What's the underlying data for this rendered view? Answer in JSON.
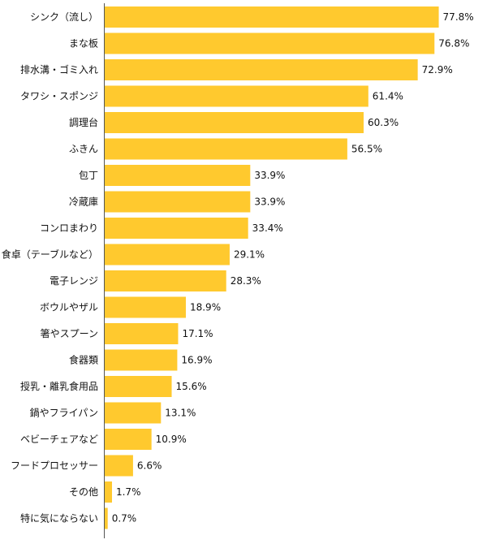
{
  "chart_data": {
    "type": "bar",
    "orientation": "horizontal",
    "categories": [
      "シンク（流し）",
      "まな板",
      "排水溝・ゴミ入れ",
      "タワシ・スポンジ",
      "調理台",
      "ふきん",
      "包丁",
      "冷蔵庫",
      "コンロまわり",
      "食卓（テーブルなど）",
      "電子レンジ",
      "ボウルやザル",
      "箸やスプーン",
      "食器類",
      "授乳・離乳食用品",
      "鍋やフライパン",
      "ベビーチェアなど",
      "フードプロセッサー",
      "その他",
      "特に気にならない"
    ],
    "values": [
      77.8,
      76.8,
      72.9,
      61.4,
      60.3,
      56.5,
      33.9,
      33.9,
      33.4,
      29.1,
      28.3,
      18.9,
      17.1,
      16.9,
      15.6,
      13.1,
      10.9,
      6.6,
      1.7,
      0.7
    ],
    "value_labels": [
      "77.8%",
      "76.8%",
      "72.9%",
      "61.4%",
      "60.3%",
      "56.5%",
      "33.9%",
      "33.9%",
      "33.4%",
      "29.1%",
      "28.3%",
      "18.9%",
      "17.1%",
      "16.9%",
      "15.6%",
      "13.1%",
      "10.9%",
      "6.6%",
      "1.7%",
      "0.7%"
    ],
    "bar_color": "#FFC92E",
    "axis_color": "#555555",
    "text_color": "#111111",
    "xlim": [
      0,
      100
    ],
    "grid": false,
    "legend": "none"
  }
}
